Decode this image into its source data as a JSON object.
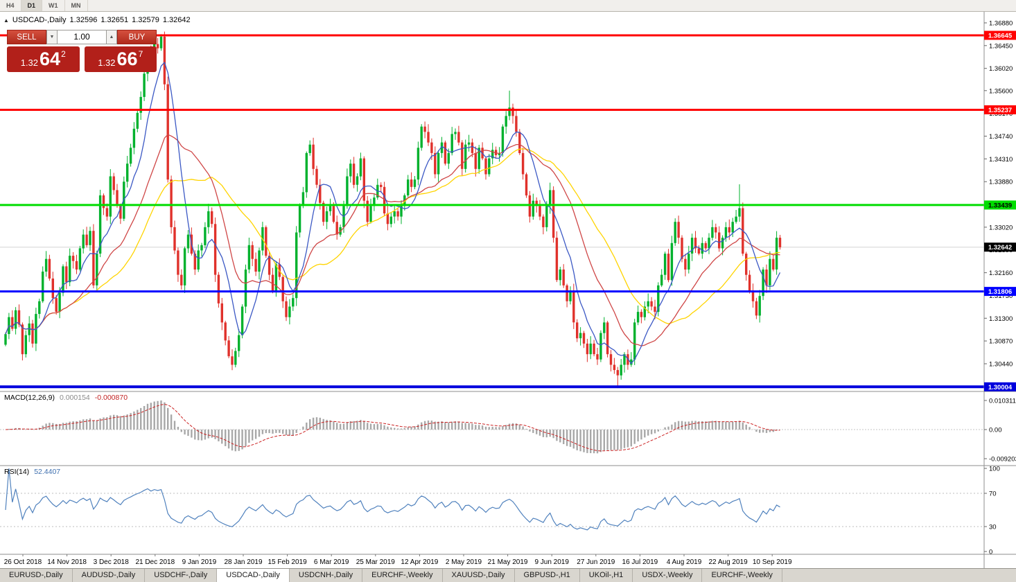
{
  "toolbar": {
    "timeframes": [
      "H4",
      "D1",
      "W1",
      "MN"
    ],
    "active": "D1"
  },
  "header": {
    "symbol": "USDCAD-,Daily",
    "open": "1.32596",
    "high": "1.32651",
    "low": "1.32579",
    "close": "1.32642"
  },
  "trade_panel": {
    "volume": "1.00",
    "color": "#b2201a",
    "sell": {
      "label": "SELL",
      "price_prefix": "1.32",
      "price_big": "64",
      "price_sup": "2"
    },
    "buy": {
      "label": "BUY",
      "price_prefix": "1.32",
      "price_big": "66",
      "price_sup": "7"
    }
  },
  "macd_panel": {
    "name": "MACD(12,26,9)",
    "main_value": "0.000154",
    "signal_value": "-0.000870",
    "axis_ticks": [
      "0.010311",
      "0.00",
      "-0.009203"
    ],
    "params": {
      "fast": 12,
      "slow": 26,
      "signal": 9
    }
  },
  "rsi_panel": {
    "name": "RSI(14)",
    "value": "52.4407",
    "period": 14,
    "axis_ticks": [
      "100",
      "70",
      "30",
      "0"
    ],
    "levels": [
      70,
      30
    ]
  },
  "price_axis": {
    "ticks": [
      "1.36880",
      "1.36450",
      "1.36020",
      "1.35600",
      "1.35170",
      "1.34740",
      "1.34310",
      "1.33880",
      "1.33450",
      "1.33020",
      "1.32590",
      "1.32160",
      "1.31730",
      "1.31300",
      "1.30870",
      "1.30440"
    ]
  },
  "tabs": {
    "active_index": 3,
    "items": [
      "EURUSD-,Daily",
      "AUDUSD-,Daily",
      "USDCHF-,Daily",
      "USDCAD-,Daily",
      "USDCNH-,Daily",
      "EURCHF-,Weekly",
      "XAUUSD-,Daily",
      "GBPUSD-,H1",
      "UKOil-,H1",
      "USDX-,Weekly",
      "EURCHF-,Weekly"
    ]
  },
  "chart_data": {
    "type": "candlestick",
    "symbol": "USDCAD",
    "timeframe": "Daily",
    "title": "USDCAD-,Daily",
    "ylim": [
      1.298,
      1.369
    ],
    "first_open": 1.308,
    "closes": [
      1.31,
      1.3132,
      1.311,
      1.3145,
      1.3118,
      1.3062,
      1.3098,
      1.312,
      1.3082,
      1.3138,
      1.3162,
      1.3218,
      1.3242,
      1.3205,
      1.3168,
      1.3142,
      1.3178,
      1.3228,
      1.3198,
      1.3248,
      1.3238,
      1.3222,
      1.3262,
      1.3288,
      1.3268,
      1.3295,
      1.3192,
      1.3252,
      1.3362,
      1.3338,
      1.3322,
      1.3398,
      1.3372,
      1.3342,
      1.3318,
      1.3388,
      1.3422,
      1.3452,
      1.3488,
      1.3518,
      1.3548,
      1.3592,
      1.3632,
      1.3612,
      1.3648,
      1.364,
      1.3662,
      1.3572,
      1.3392,
      1.3302,
      1.3258,
      1.3212,
      1.3192,
      1.3262,
      1.3288,
      1.3252,
      1.3222,
      1.3258,
      1.3268,
      1.3302,
      1.3332,
      1.3308,
      1.3212,
      1.3158,
      1.3122,
      1.3088,
      1.3058,
      1.3042,
      1.3068,
      1.3098,
      1.3152,
      1.3222,
      1.3268,
      1.3242,
      1.3218,
      1.3258,
      1.3302,
      1.3248,
      1.3212,
      1.3182,
      1.3232,
      1.3208,
      1.3162,
      1.3132,
      1.3152,
      1.3168,
      1.3292,
      1.3342,
      1.3368,
      1.3442,
      1.3458,
      1.3412,
      1.3382,
      1.3348,
      1.3312,
      1.3332,
      1.3342,
      1.3312,
      1.3288,
      1.3302,
      1.3342,
      1.3398,
      1.3422,
      1.3382,
      1.3398,
      1.3432,
      1.3352,
      1.3312,
      1.3342,
      1.3358,
      1.3382,
      1.3378,
      1.3328,
      1.3308,
      1.3322,
      1.3332,
      1.3322,
      1.3342,
      1.3362,
      1.3392,
      1.3378,
      1.3392,
      1.3452,
      1.3492,
      1.3482,
      1.3462,
      1.3442,
      1.3402,
      1.3442,
      1.3462,
      1.3422,
      1.3442,
      1.3478,
      1.3482,
      1.3462,
      1.3412,
      1.3458,
      1.3462,
      1.3442,
      1.3412,
      1.3452,
      1.3432,
      1.3402,
      1.3432,
      1.3448,
      1.3438,
      1.3442,
      1.3492,
      1.3512,
      1.3528,
      1.3512,
      1.3482,
      1.3442,
      1.3402,
      1.3362,
      1.3322,
      1.3352,
      1.3342,
      1.3322,
      1.3302,
      1.3342,
      1.3372,
      1.3282,
      1.3202,
      1.3222,
      1.3192,
      1.3162,
      1.3182,
      1.3122,
      1.3092,
      1.3102,
      1.3082,
      1.3062,
      1.3082,
      1.3062,
      1.3052,
      1.3102,
      1.3122,
      1.3062,
      1.3042,
      1.3032,
      1.3022,
      1.3042,
      1.3062,
      1.3042,
      1.3052,
      1.3122,
      1.3142,
      1.3132,
      1.3152,
      1.3162,
      1.3152,
      1.3142,
      1.3192,
      1.3212,
      1.3252,
      1.3202,
      1.3272,
      1.3312,
      1.3282,
      1.3242,
      1.3222,
      1.3252,
      1.3282,
      1.3262,
      1.3252,
      1.3272,
      1.3262,
      1.3282,
      1.3302,
      1.3292,
      1.3262,
      1.3282,
      1.3302,
      1.3292,
      1.3312,
      1.3322,
      1.3338,
      1.3252,
      1.3212,
      1.3182,
      1.3162,
      1.3135,
      1.3172,
      1.3222,
      1.3192,
      1.3242,
      1.3222,
      1.3282,
      1.3264
    ],
    "wick_overrides": {
      "high": {
        "149": 1.356,
        "217": 1.3383
      },
      "low": {
        "181": 1.2998
      }
    },
    "levels": [
      {
        "label": "1.36645",
        "price": 1.36645,
        "color": "#ff0000",
        "text_color": "#ffffff",
        "width": 3
      },
      {
        "label": "1.35237",
        "price": 1.35237,
        "color": "#ff0000",
        "text_color": "#ffffff",
        "width": 3
      },
      {
        "label": "1.33439",
        "price": 1.33439,
        "color": "#00dd00",
        "text_color": "#000000",
        "width": 3
      },
      {
        "label": "1.31806",
        "price": 1.31806,
        "color": "#0000ff",
        "text_color": "#ffffff",
        "width": 3
      },
      {
        "label": "1.30004",
        "price": 1.30004,
        "color": "#0000dd",
        "text_color": "#ffffff",
        "width": 4
      }
    ],
    "current_price": {
      "value": 1.32642,
      "label": "1.32642",
      "bg": "#000000",
      "text_color": "#ffffff"
    },
    "date_labels": [
      "26 Oct 2018",
      "14 Nov 2018",
      "3 Dec 2018",
      "21 Dec 2018",
      "9 Jan 2019",
      "28 Jan 2019",
      "15 Feb 2019",
      "6 Mar 2019",
      "25 Mar 2019",
      "12 Apr 2019",
      "2 May 2019",
      "21 May 2019",
      "9 Jun 2019",
      "27 Jun 2019",
      "16 Jul 2019",
      "4 Aug 2019",
      "22 Aug 2019",
      "10 Sep 2019"
    ],
    "overlays": [
      {
        "name": "ma-fast",
        "period": 8,
        "color": "#3b58c4"
      },
      {
        "name": "ma-mid",
        "period": 21,
        "color": "#cf4646"
      },
      {
        "name": "ma-slow",
        "period": 34,
        "color": "#ffd400"
      }
    ],
    "colors": {
      "up": "#00b12d",
      "down": "#e0312b",
      "macd_hist": "#a8a8a8",
      "macd_signal": "#cc2222",
      "rsi_line": "#4f81bd"
    }
  }
}
